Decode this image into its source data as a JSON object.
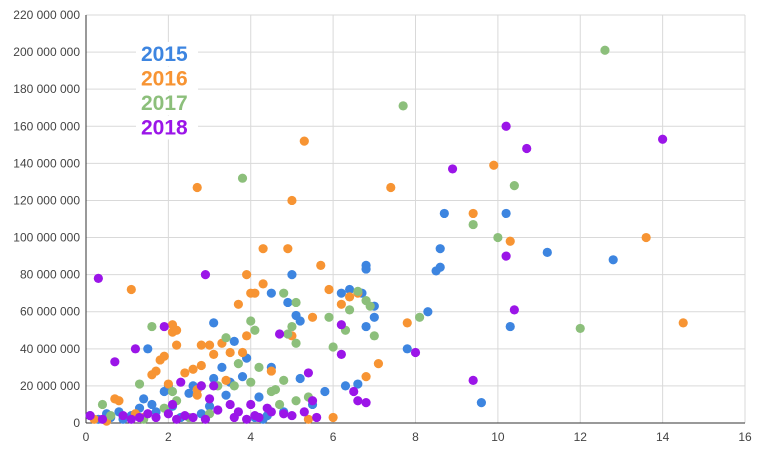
{
  "chart_data": {
    "type": "scatter",
    "title": "",
    "xlabel": "",
    "ylabel": "",
    "xlim": [
      0,
      16
    ],
    "ylim": [
      0,
      220000000
    ],
    "x_ticks": [
      0,
      2,
      4,
      6,
      8,
      10,
      12,
      14,
      16
    ],
    "x_tick_labels": [
      "0",
      "2",
      "4",
      "6",
      "8",
      "10",
      "12",
      "14",
      "16"
    ],
    "y_ticks": [
      0,
      20000000,
      40000000,
      60000000,
      80000000,
      100000000,
      120000000,
      140000000,
      160000000,
      180000000,
      200000000,
      220000000
    ],
    "y_tick_labels": [
      "0",
      "20 000 000",
      "40 000 000",
      "60 000 000",
      "80 000 000",
      "100 000 000",
      "120 000 000",
      "140 000 000",
      "160 000 000",
      "180 000 000",
      "200 000 000",
      "220 000 000"
    ],
    "grid": true,
    "legend": "top-left",
    "series": [
      {
        "name": "2015",
        "color": "#3d85e0",
        "points": [
          [
            0.1,
            4000000
          ],
          [
            0.3,
            2000000
          ],
          [
            0.5,
            5000000
          ],
          [
            0.6,
            3000000
          ],
          [
            0.8,
            6000000
          ],
          [
            0.9,
            2000000
          ],
          [
            1.1,
            4000000
          ],
          [
            1.3,
            8000000
          ],
          [
            1.4,
            13000000
          ],
          [
            1.5,
            40000000
          ],
          [
            1.6,
            10000000
          ],
          [
            1.7,
            6000000
          ],
          [
            1.9,
            17000000
          ],
          [
            2.0,
            20000000
          ],
          [
            2.1,
            9000000
          ],
          [
            2.3,
            3000000
          ],
          [
            2.5,
            16000000
          ],
          [
            2.6,
            20000000
          ],
          [
            2.8,
            5000000
          ],
          [
            3.0,
            9000000
          ],
          [
            3.1,
            24000000
          ],
          [
            3.1,
            54000000
          ],
          [
            3.3,
            30000000
          ],
          [
            3.4,
            15000000
          ],
          [
            3.5,
            22000000
          ],
          [
            3.6,
            44000000
          ],
          [
            3.8,
            25000000
          ],
          [
            3.9,
            35000000
          ],
          [
            4.1,
            3000000
          ],
          [
            4.2,
            14000000
          ],
          [
            4.3,
            2000000
          ],
          [
            4.4,
            4000000
          ],
          [
            4.5,
            70000000
          ],
          [
            4.5,
            30000000
          ],
          [
            4.8,
            6000000
          ],
          [
            4.9,
            65000000
          ],
          [
            5.0,
            80000000
          ],
          [
            5.1,
            58000000
          ],
          [
            5.2,
            55000000
          ],
          [
            5.2,
            24000000
          ],
          [
            5.5,
            10000000
          ],
          [
            5.8,
            17000000
          ],
          [
            6.2,
            70000000
          ],
          [
            6.3,
            20000000
          ],
          [
            6.4,
            72000000
          ],
          [
            6.6,
            21000000
          ],
          [
            6.7,
            70000000
          ],
          [
            6.8,
            85000000
          ],
          [
            6.8,
            83000000
          ],
          [
            6.8,
            52000000
          ],
          [
            7.0,
            63000000
          ],
          [
            7.0,
            57000000
          ],
          [
            7.8,
            40000000
          ],
          [
            8.3,
            60000000
          ],
          [
            8.5,
            82000000
          ],
          [
            8.6,
            84000000
          ],
          [
            8.6,
            94000000
          ],
          [
            8.7,
            113000000
          ],
          [
            9.6,
            11000000
          ],
          [
            10.2,
            113000000
          ],
          [
            10.3,
            52000000
          ],
          [
            11.2,
            92000000
          ],
          [
            12.8,
            88000000
          ]
        ]
      },
      {
        "name": "2016",
        "color": "#f79433",
        "points": [
          [
            0.2,
            2000000
          ],
          [
            0.5,
            1000000
          ],
          [
            0.7,
            13000000
          ],
          [
            0.8,
            12000000
          ],
          [
            1.1,
            72000000
          ],
          [
            1.2,
            5000000
          ],
          [
            1.4,
            3000000
          ],
          [
            1.6,
            26000000
          ],
          [
            1.7,
            28000000
          ],
          [
            1.8,
            34000000
          ],
          [
            1.9,
            36000000
          ],
          [
            2.0,
            21000000
          ],
          [
            2.1,
            49000000
          ],
          [
            2.1,
            53000000
          ],
          [
            2.2,
            50000000
          ],
          [
            2.2,
            42000000
          ],
          [
            2.4,
            27000000
          ],
          [
            2.6,
            29000000
          ],
          [
            2.7,
            127000000
          ],
          [
            2.7,
            18000000
          ],
          [
            2.7,
            15000000
          ],
          [
            2.8,
            42000000
          ],
          [
            2.8,
            31000000
          ],
          [
            3.0,
            42000000
          ],
          [
            3.1,
            37000000
          ],
          [
            3.3,
            43000000
          ],
          [
            3.4,
            23000000
          ],
          [
            3.5,
            38000000
          ],
          [
            3.7,
            64000000
          ],
          [
            3.8,
            38000000
          ],
          [
            3.9,
            80000000
          ],
          [
            3.9,
            47000000
          ],
          [
            4.0,
            70000000
          ],
          [
            4.1,
            70000000
          ],
          [
            4.3,
            94000000
          ],
          [
            4.3,
            75000000
          ],
          [
            4.5,
            28000000
          ],
          [
            4.9,
            94000000
          ],
          [
            5.0,
            120000000
          ],
          [
            5.0,
            47000000
          ],
          [
            5.3,
            152000000
          ],
          [
            5.4,
            2000000
          ],
          [
            5.5,
            57000000
          ],
          [
            5.7,
            85000000
          ],
          [
            5.9,
            72000000
          ],
          [
            6.0,
            3000000
          ],
          [
            6.2,
            64000000
          ],
          [
            6.4,
            68000000
          ],
          [
            6.6,
            70000000
          ],
          [
            6.8,
            25000000
          ],
          [
            7.1,
            32000000
          ],
          [
            7.4,
            127000000
          ],
          [
            7.8,
            54000000
          ],
          [
            9.4,
            113000000
          ],
          [
            9.9,
            139000000
          ],
          [
            10.3,
            98000000
          ],
          [
            13.6,
            100000000
          ],
          [
            14.5,
            54000000
          ]
        ]
      },
      {
        "name": "2017",
        "color": "#8cbf7b",
        "points": [
          [
            0.4,
            10000000
          ],
          [
            0.6,
            4000000
          ],
          [
            1.3,
            21000000
          ],
          [
            1.4,
            2000000
          ],
          [
            1.6,
            52000000
          ],
          [
            1.9,
            8000000
          ],
          [
            2.1,
            17000000
          ],
          [
            2.2,
            12000000
          ],
          [
            2.5,
            3000000
          ],
          [
            2.8,
            20000000
          ],
          [
            3.0,
            5000000
          ],
          [
            3.2,
            20000000
          ],
          [
            3.4,
            46000000
          ],
          [
            3.6,
            20000000
          ],
          [
            3.7,
            32000000
          ],
          [
            3.8,
            132000000
          ],
          [
            4.0,
            55000000
          ],
          [
            4.0,
            22000000
          ],
          [
            4.1,
            50000000
          ],
          [
            4.2,
            30000000
          ],
          [
            4.5,
            17000000
          ],
          [
            4.6,
            18000000
          ],
          [
            4.7,
            10000000
          ],
          [
            4.8,
            70000000
          ],
          [
            4.8,
            23000000
          ],
          [
            4.9,
            48000000
          ],
          [
            5.0,
            52000000
          ],
          [
            5.1,
            12000000
          ],
          [
            5.1,
            65000000
          ],
          [
            5.1,
            43000000
          ],
          [
            5.4,
            14000000
          ],
          [
            5.9,
            57000000
          ],
          [
            6.0,
            41000000
          ],
          [
            6.3,
            50000000
          ],
          [
            6.4,
            61000000
          ],
          [
            6.6,
            71000000
          ],
          [
            6.8,
            66000000
          ],
          [
            6.9,
            63000000
          ],
          [
            7.0,
            47000000
          ],
          [
            7.7,
            171000000
          ],
          [
            8.1,
            57000000
          ],
          [
            9.4,
            107000000
          ],
          [
            10.0,
            100000000
          ],
          [
            10.4,
            128000000
          ],
          [
            12.0,
            51000000
          ],
          [
            12.6,
            201000000
          ]
        ]
      },
      {
        "name": "2018",
        "color": "#9b15e8",
        "points": [
          [
            0.1,
            4000000
          ],
          [
            0.3,
            78000000
          ],
          [
            0.4,
            2000000
          ],
          [
            0.7,
            33000000
          ],
          [
            0.9,
            4000000
          ],
          [
            1.1,
            2000000
          ],
          [
            1.2,
            40000000
          ],
          [
            1.3,
            3000000
          ],
          [
            1.5,
            5000000
          ],
          [
            1.7,
            3000000
          ],
          [
            1.9,
            52000000
          ],
          [
            2.0,
            5000000
          ],
          [
            2.1,
            10000000
          ],
          [
            2.2,
            2000000
          ],
          [
            2.3,
            22000000
          ],
          [
            2.4,
            4000000
          ],
          [
            2.6,
            3000000
          ],
          [
            2.8,
            20000000
          ],
          [
            2.9,
            80000000
          ],
          [
            2.9,
            2000000
          ],
          [
            3.0,
            13000000
          ],
          [
            3.1,
            20000000
          ],
          [
            3.2,
            7000000
          ],
          [
            3.5,
            10000000
          ],
          [
            3.6,
            3000000
          ],
          [
            3.7,
            6000000
          ],
          [
            3.9,
            2000000
          ],
          [
            4.0,
            10000000
          ],
          [
            4.1,
            4000000
          ],
          [
            4.2,
            3000000
          ],
          [
            4.4,
            8000000
          ],
          [
            4.5,
            6000000
          ],
          [
            4.7,
            48000000
          ],
          [
            4.8,
            5000000
          ],
          [
            5.0,
            4000000
          ],
          [
            5.3,
            6000000
          ],
          [
            5.4,
            27000000
          ],
          [
            5.5,
            12000000
          ],
          [
            5.6,
            3000000
          ],
          [
            6.2,
            53000000
          ],
          [
            6.2,
            37000000
          ],
          [
            6.5,
            17000000
          ],
          [
            6.6,
            12000000
          ],
          [
            6.8,
            11000000
          ],
          [
            8.0,
            38000000
          ],
          [
            8.9,
            137000000
          ],
          [
            9.4,
            23000000
          ],
          [
            10.2,
            160000000
          ],
          [
            10.2,
            90000000
          ],
          [
            10.4,
            61000000
          ],
          [
            10.7,
            148000000
          ],
          [
            14.0,
            153000000
          ]
        ]
      }
    ]
  }
}
